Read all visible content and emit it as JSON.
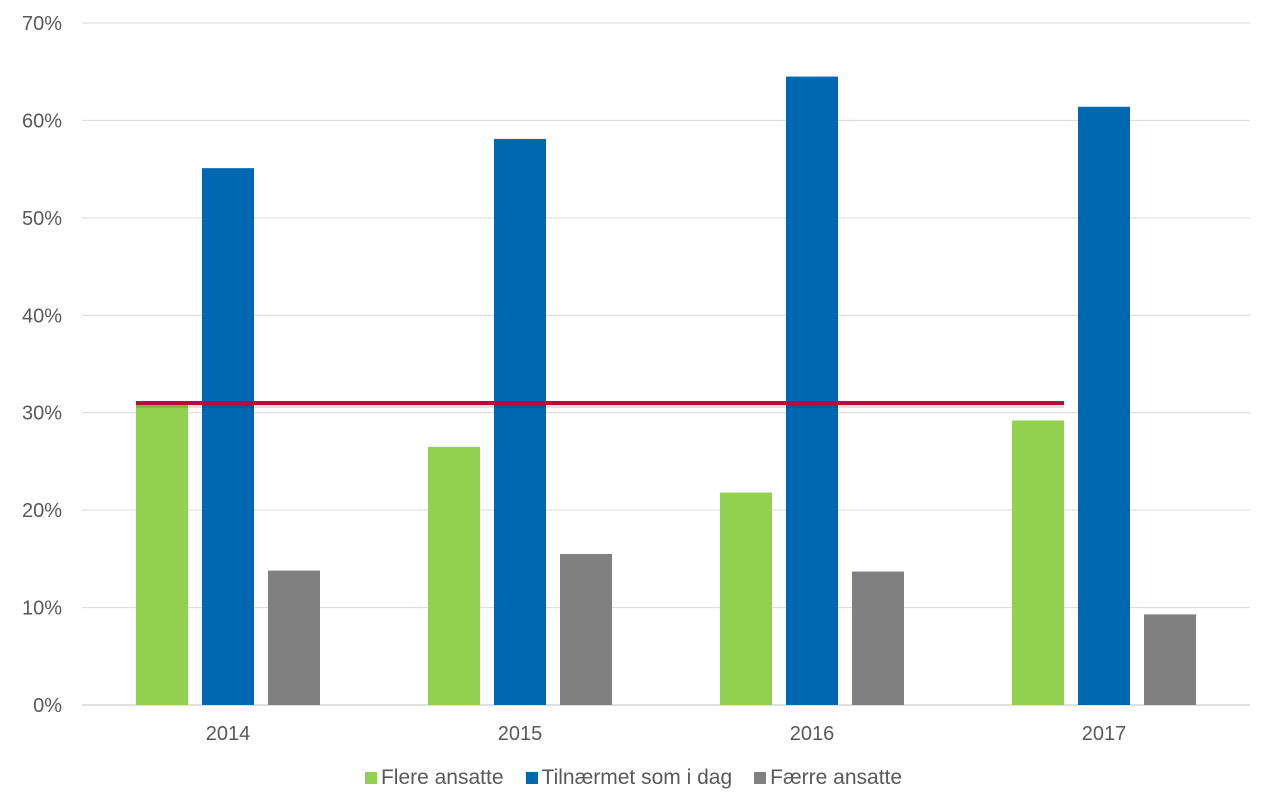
{
  "chart_data": {
    "type": "bar",
    "categories": [
      "2014",
      "2015",
      "2016",
      "2017"
    ],
    "series": [
      {
        "name": "Flere ansatte",
        "values": [
          31.0,
          26.5,
          21.8,
          29.2
        ],
        "color": "#92d050"
      },
      {
        "name": "Tilnærmet som i dag",
        "values": [
          55.1,
          58.1,
          64.5,
          61.4
        ],
        "color": "#0068b0"
      },
      {
        "name": "Færre ansatte",
        "values": [
          13.8,
          15.5,
          13.7,
          9.3
        ],
        "color": "#808080"
      }
    ],
    "reference_line": {
      "value": 31.0,
      "from_category": "2014",
      "to_category": "2017",
      "color": "#b0103a"
    },
    "y_ticks": [
      "0%",
      "10%",
      "20%",
      "30%",
      "40%",
      "50%",
      "60%",
      "70%"
    ],
    "ylim": [
      0,
      70
    ],
    "grid": true,
    "legend_position": "bottom",
    "title": "",
    "xlabel": "",
    "ylabel": ""
  }
}
